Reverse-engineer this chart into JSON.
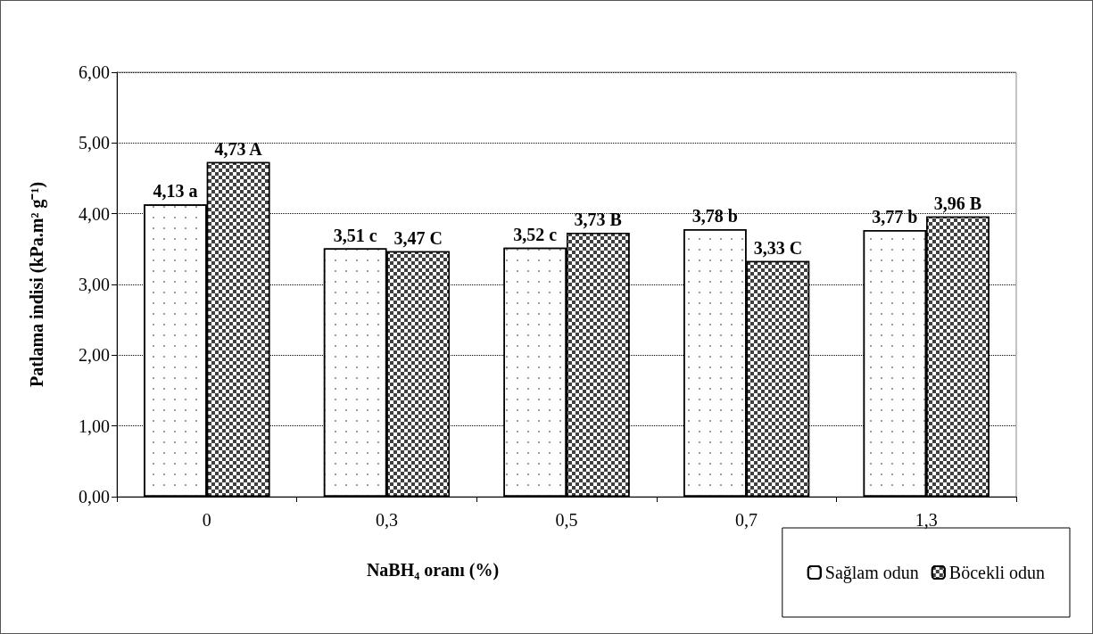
{
  "chart_data": {
    "type": "bar",
    "xlabel": "NaBH₄ oranı (%)",
    "ylabel": "Patlama indisi (kPa.m² g⁻¹)",
    "categories": [
      "0",
      "0,3",
      "0,5",
      "0,7",
      "1,3"
    ],
    "series": [
      {
        "name": "Sağlam odun",
        "color": "#ffffff",
        "values": [
          4.13,
          3.51,
          3.52,
          3.78,
          3.77
        ],
        "value_labels": [
          "4,13 a",
          "3,51 c",
          "3,52 c",
          "3,78 b",
          "3,77 b"
        ]
      },
      {
        "name": "Böcekli odun",
        "color": "#404040",
        "values": [
          4.73,
          3.47,
          3.73,
          3.33,
          3.96
        ],
        "value_labels": [
          "4,73 A",
          "3,47 C",
          "3,73 B",
          "3,33 C",
          "3,96 B"
        ]
      }
    ],
    "ylim": [
      0,
      6
    ],
    "yticks": [
      {
        "value": 0,
        "label": "0,00"
      },
      {
        "value": 1,
        "label": "1,00"
      },
      {
        "value": 2,
        "label": "2,00"
      },
      {
        "value": 3,
        "label": "3,00"
      },
      {
        "value": 4,
        "label": "4,00"
      },
      {
        "value": 5,
        "label": "5,00"
      },
      {
        "value": 6,
        "label": "6,00"
      }
    ],
    "grid": "y",
    "legend": "bottom right"
  }
}
